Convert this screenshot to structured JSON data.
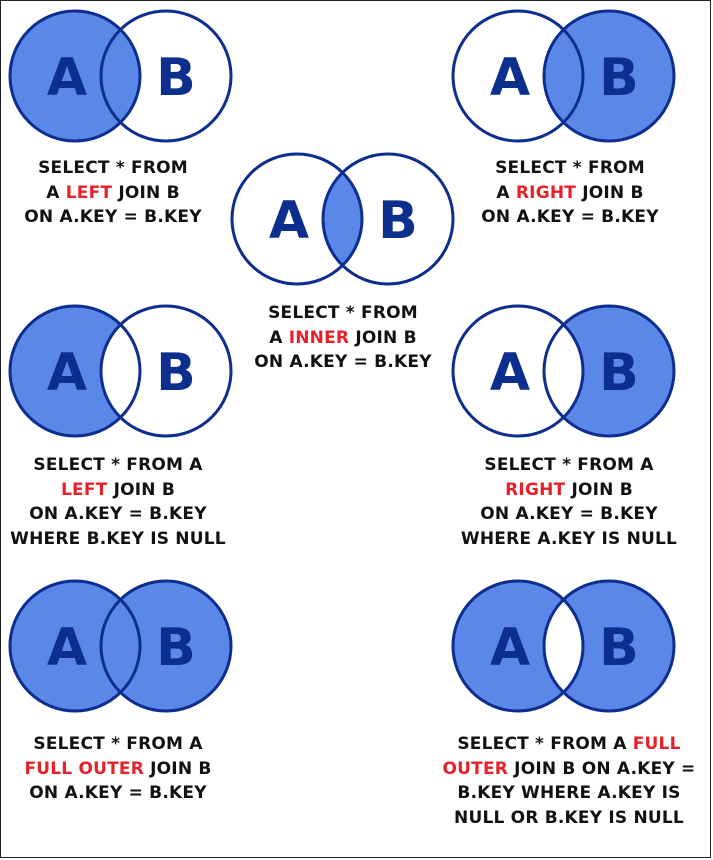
{
  "colors": {
    "fill": "#5b88e8",
    "stroke": "#0d2e8f",
    "keyword": "#e8202a",
    "text": "#111111"
  },
  "diagrams": [
    {
      "id": "left-join",
      "labels": [
        "A",
        "B"
      ],
      "shade": "A",
      "caption": [
        [
          {
            "t": "SELECT * FROM"
          }
        ],
        [
          {
            "t": "A "
          },
          {
            "t": "LEFT",
            "kw": true
          },
          {
            "t": " JOIN B"
          }
        ],
        [
          {
            "t": "ON A.KEY = B.KEY"
          }
        ]
      ]
    },
    {
      "id": "right-join",
      "labels": [
        "A",
        "B"
      ],
      "shade": "B",
      "caption": [
        [
          {
            "t": "SELECT * FROM"
          }
        ],
        [
          {
            "t": "A "
          },
          {
            "t": "RIGHT",
            "kw": true
          },
          {
            "t": " JOIN B"
          }
        ],
        [
          {
            "t": "ON A.KEY = B.KEY"
          }
        ]
      ]
    },
    {
      "id": "inner-join",
      "labels": [
        "A",
        "B"
      ],
      "shade": "AB",
      "caption": [
        [
          {
            "t": "SELECT * FROM"
          }
        ],
        [
          {
            "t": "A "
          },
          {
            "t": "INNER",
            "kw": true
          },
          {
            "t": " JOIN B"
          }
        ],
        [
          {
            "t": "ON A.KEY = B.KEY"
          }
        ]
      ]
    },
    {
      "id": "left-only",
      "labels": [
        "A",
        "B"
      ],
      "shade": "A-only",
      "caption": [
        [
          {
            "t": "SELECT * FROM A"
          }
        ],
        [
          {
            "t": "LEFT",
            "kw": true
          },
          {
            "t": " JOIN B"
          }
        ],
        [
          {
            "t": "ON A.KEY = B.KEY"
          }
        ],
        [
          {
            "t": "WHERE B.KEY IS NULL"
          }
        ]
      ]
    },
    {
      "id": "right-only",
      "labels": [
        "A",
        "B"
      ],
      "shade": "B-only",
      "caption": [
        [
          {
            "t": "SELECT * FROM A"
          }
        ],
        [
          {
            "t": "RIGHT",
            "kw": true
          },
          {
            "t": " JOIN B"
          }
        ],
        [
          {
            "t": "ON A.KEY = B.KEY"
          }
        ],
        [
          {
            "t": "WHERE A.KEY IS NULL"
          }
        ]
      ]
    },
    {
      "id": "full-outer",
      "labels": [
        "A",
        "B"
      ],
      "shade": "all",
      "caption": [
        [
          {
            "t": "SELECT * FROM A"
          }
        ],
        [
          {
            "t": "FULL OUTER",
            "kw": true
          },
          {
            "t": " JOIN B"
          }
        ],
        [
          {
            "t": "ON A.KEY = B.KEY"
          }
        ]
      ]
    },
    {
      "id": "full-outer-exclusive",
      "labels": [
        "A",
        "B"
      ],
      "shade": "xor",
      "caption": [
        [
          {
            "t": "SELECT * FROM A "
          },
          {
            "t": "FULL",
            "kw": true
          }
        ],
        [
          {
            "t": "OUTER",
            "kw": true
          },
          {
            "t": " JOIN B ON A.KEY ="
          }
        ],
        [
          {
            "t": "B.KEY WHERE A.KEY IS"
          }
        ],
        [
          {
            "t": "NULL OR B.KEY IS NULL"
          }
        ]
      ]
    }
  ]
}
